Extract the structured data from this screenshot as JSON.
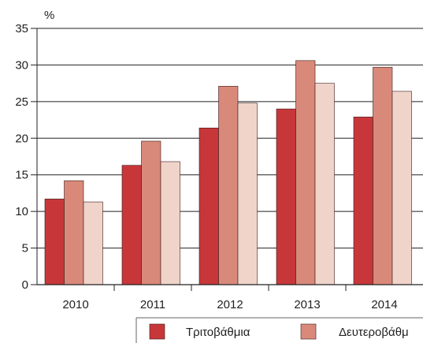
{
  "chart_data": {
    "type": "bar",
    "unit_label": "%",
    "categories": [
      "2010",
      "2011",
      "2012",
      "2013",
      "2014"
    ],
    "series": [
      {
        "name": "Τριτοβάθμια",
        "values": [
          11.7,
          16.3,
          21.4,
          24.0,
          22.9
        ]
      },
      {
        "name": "Δευτεροβάθμ",
        "values": [
          14.2,
          19.6,
          27.1,
          30.6,
          29.7
        ]
      },
      {
        "name": "",
        "values": [
          11.3,
          16.8,
          24.8,
          27.5,
          26.4
        ]
      }
    ],
    "yticks": [
      "0",
      "5",
      "10",
      "15",
      "20",
      "25",
      "30",
      "35"
    ],
    "ylim": [
      0,
      35
    ],
    "grid": true,
    "legend_position": "bottom",
    "colors": {
      "series": [
        "#c7373a",
        "#d9897a",
        "#f0d3c9"
      ],
      "grid": "#222222",
      "bar_stroke": "#3a1a1a"
    }
  }
}
